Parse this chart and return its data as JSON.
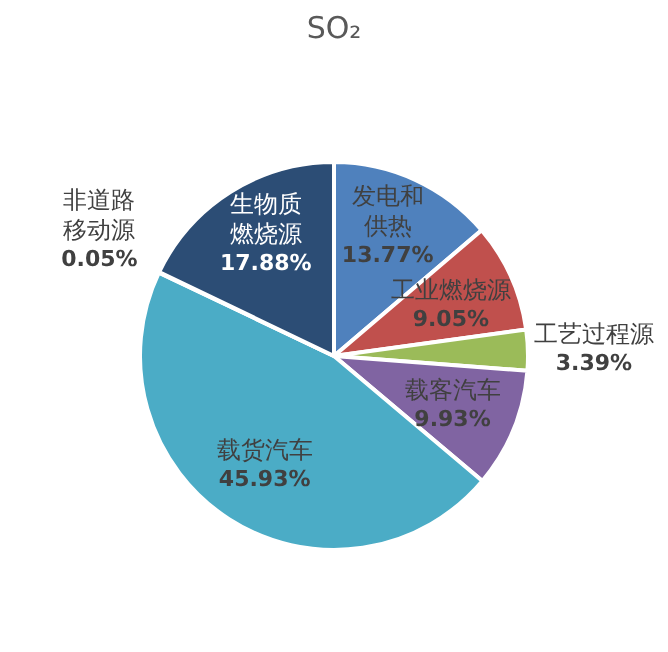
{
  "chart_data": {
    "type": "pie",
    "title": "SO₂",
    "categories": [
      "发电和供热",
      "工业燃烧源",
      "工艺过程源",
      "载客汽车",
      "载货汽车",
      "非道路移动源",
      "生物质燃烧源"
    ],
    "values": [
      13.77,
      9.05,
      3.39,
      9.93,
      45.93,
      0.05,
      17.88
    ],
    "value_labels": [
      "13.77%",
      "9.05%",
      "3.39%",
      "9.93%",
      "45.93%",
      "0.05%",
      "17.88%"
    ],
    "colors": [
      "#4f81bd",
      "#c0504d",
      "#9bbb59",
      "#8064a2",
      "#4bacc6",
      "#f79646",
      "#2c4d75"
    ],
    "legend": false
  }
}
